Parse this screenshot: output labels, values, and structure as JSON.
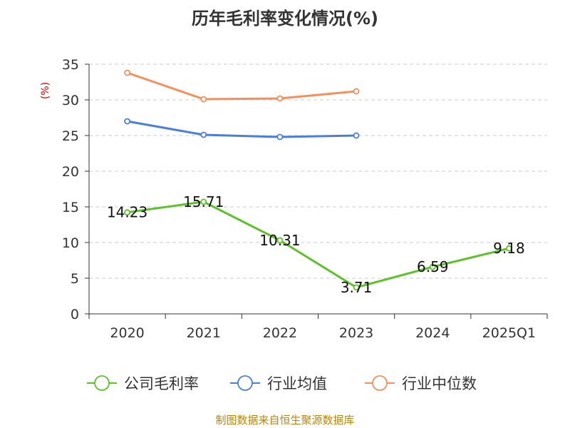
{
  "chart_data": {
    "type": "line",
    "title": "历年毛利率变化情况(%)",
    "ylabel": "(%)",
    "xlabel": "",
    "categories": [
      "2020",
      "2021",
      "2022",
      "2023",
      "2024",
      "2025Q1"
    ],
    "ylim": [
      0,
      35
    ],
    "yticks": [
      0,
      5,
      10,
      15,
      20,
      25,
      30,
      35
    ],
    "grid": true,
    "legend_position": "bottom",
    "series": [
      {
        "name": "公司毛利率",
        "color": "#5dc22a",
        "values": [
          14.23,
          15.71,
          10.31,
          3.71,
          6.59,
          9.18
        ],
        "labels": [
          "14.23",
          "15.71",
          "10.31",
          "3.71",
          "6.59",
          "9.18"
        ]
      },
      {
        "name": "行业均值",
        "color": "#4a7fd9",
        "values": [
          27.0,
          25.1,
          24.8,
          25.0,
          null,
          null
        ]
      },
      {
        "name": "行业中位数",
        "color": "#f5905a",
        "values": [
          33.8,
          30.1,
          30.2,
          31.2,
          null,
          null
        ]
      }
    ]
  },
  "source": "制图数据来自恒生聚源数据库",
  "colors": {
    "axis": "#333333",
    "grid": "#cccccc",
    "ylabel": "#cc0000",
    "source": "#b8860b"
  }
}
